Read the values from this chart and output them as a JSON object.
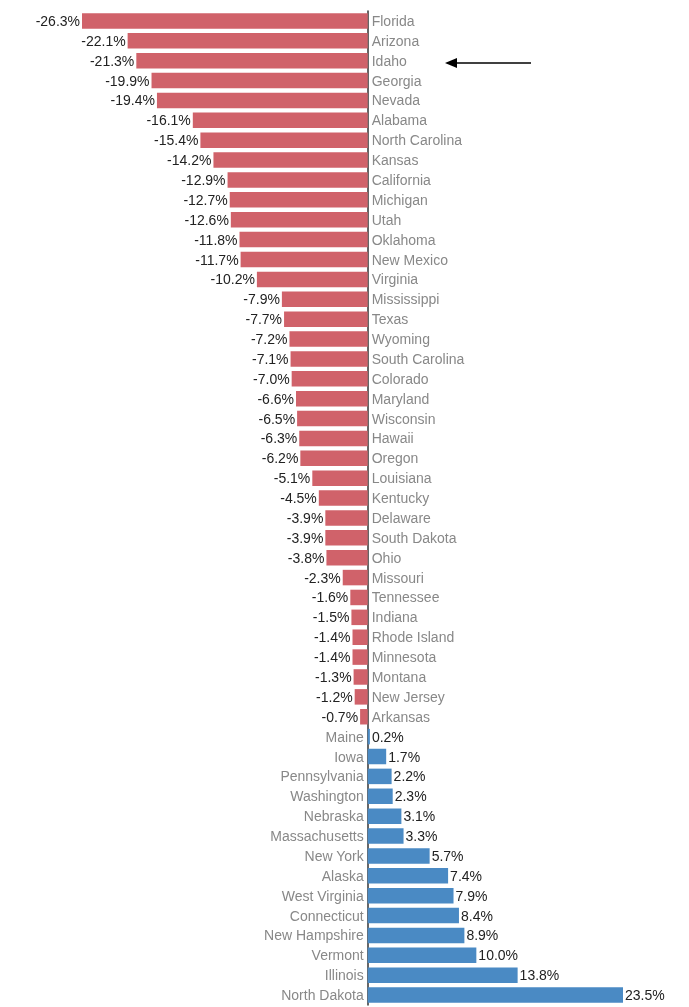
{
  "chart_data": {
    "type": "bar",
    "orientation": "horizontal",
    "categories": [
      "Florida",
      "Arizona",
      "Idaho",
      "Georgia",
      "Nevada",
      "Alabama",
      "North Carolina",
      "Kansas",
      "California",
      "Michigan",
      "Utah",
      "Oklahoma",
      "New Mexico",
      "Virginia",
      "Mississippi",
      "Texas",
      "Wyoming",
      "South Carolina",
      "Colorado",
      "Maryland",
      "Wisconsin",
      "Hawaii",
      "Oregon",
      "Louisiana",
      "Kentucky",
      "Delaware",
      "South Dakota",
      "Ohio",
      "Missouri",
      "Tennessee",
      "Indiana",
      "Rhode Island",
      "Minnesota",
      "Montana",
      "New Jersey",
      "Arkansas",
      "Maine",
      "Iowa",
      "Pennsylvania",
      "Washington",
      "Nebraska",
      "Massachusetts",
      "New York",
      "Alaska",
      "West Virginia",
      "Connecticut",
      "New Hampshire",
      "Vermont",
      "Illinois",
      "North Dakota"
    ],
    "values": [
      -26.3,
      -22.1,
      -21.3,
      -19.9,
      -19.4,
      -16.1,
      -15.4,
      -14.2,
      -12.9,
      -12.7,
      -12.6,
      -11.8,
      -11.7,
      -10.2,
      -7.9,
      -7.7,
      -7.2,
      -7.1,
      -7.0,
      -6.6,
      -6.5,
      -6.3,
      -6.2,
      -5.1,
      -4.5,
      -3.9,
      -3.9,
      -3.8,
      -2.3,
      -1.6,
      -1.5,
      -1.4,
      -1.4,
      -1.3,
      -1.2,
      -0.7,
      0.2,
      1.7,
      2.2,
      2.3,
      3.1,
      3.3,
      5.7,
      7.4,
      7.9,
      8.4,
      8.9,
      10.0,
      13.8,
      23.5
    ],
    "value_labels": [
      "-26.3%",
      "-22.1%",
      "-21.3%",
      "-19.9%",
      "-19.4%",
      "-16.1%",
      "-15.4%",
      "-14.2%",
      "-12.9%",
      "-12.7%",
      "-12.6%",
      "-11.8%",
      "-11.7%",
      "-10.2%",
      "-7.9%",
      "-7.7%",
      "-7.2%",
      "-7.1%",
      "-7.0%",
      "-6.6%",
      "-6.5%",
      "-6.3%",
      "-6.2%",
      "-5.1%",
      "-4.5%",
      "-3.9%",
      "-3.9%",
      "-3.8%",
      "-2.3%",
      "-1.6%",
      "-1.5%",
      "-1.4%",
      "-1.4%",
      "-1.3%",
      "-1.2%",
      "-0.7%",
      "0.2%",
      "1.7%",
      "2.2%",
      "2.3%",
      "3.1%",
      "3.3%",
      "5.7%",
      "7.4%",
      "7.9%",
      "8.4%",
      "8.9%",
      "10.0%",
      "13.8%",
      "23.5%"
    ],
    "colors": [
      "#d0626a",
      "#d0626a",
      "#d0626a",
      "#d0626a",
      "#d0626a",
      "#d0626a",
      "#d0626a",
      "#d0626a",
      "#d0626a",
      "#d0626a",
      "#d0626a",
      "#d0626a",
      "#d0626a",
      "#d0626a",
      "#d0626a",
      "#d0626a",
      "#d0626a",
      "#d0626a",
      "#d0626a",
      "#d0626a",
      "#d0626a",
      "#d0626a",
      "#d0626a",
      "#d0626a",
      "#d0626a",
      "#d0626a",
      "#d0626a",
      "#d0626a",
      "#d0626a",
      "#d0626a",
      "#d0626a",
      "#d0626a",
      "#d0626a",
      "#d0626a",
      "#d0626a",
      "#d0626a",
      "#4a8ac4",
      "#4a8ac4",
      "#4a8ac4",
      "#4a8ac4",
      "#4a8ac4",
      "#4a8ac4",
      "#4a8ac4",
      "#4a8ac4",
      "#4a8ac4",
      "#4a8ac4",
      "#4a8ac4",
      "#4a8ac4",
      "#4a8ac4",
      "#4a8ac4"
    ],
    "tick_labels": "y"
  }
}
